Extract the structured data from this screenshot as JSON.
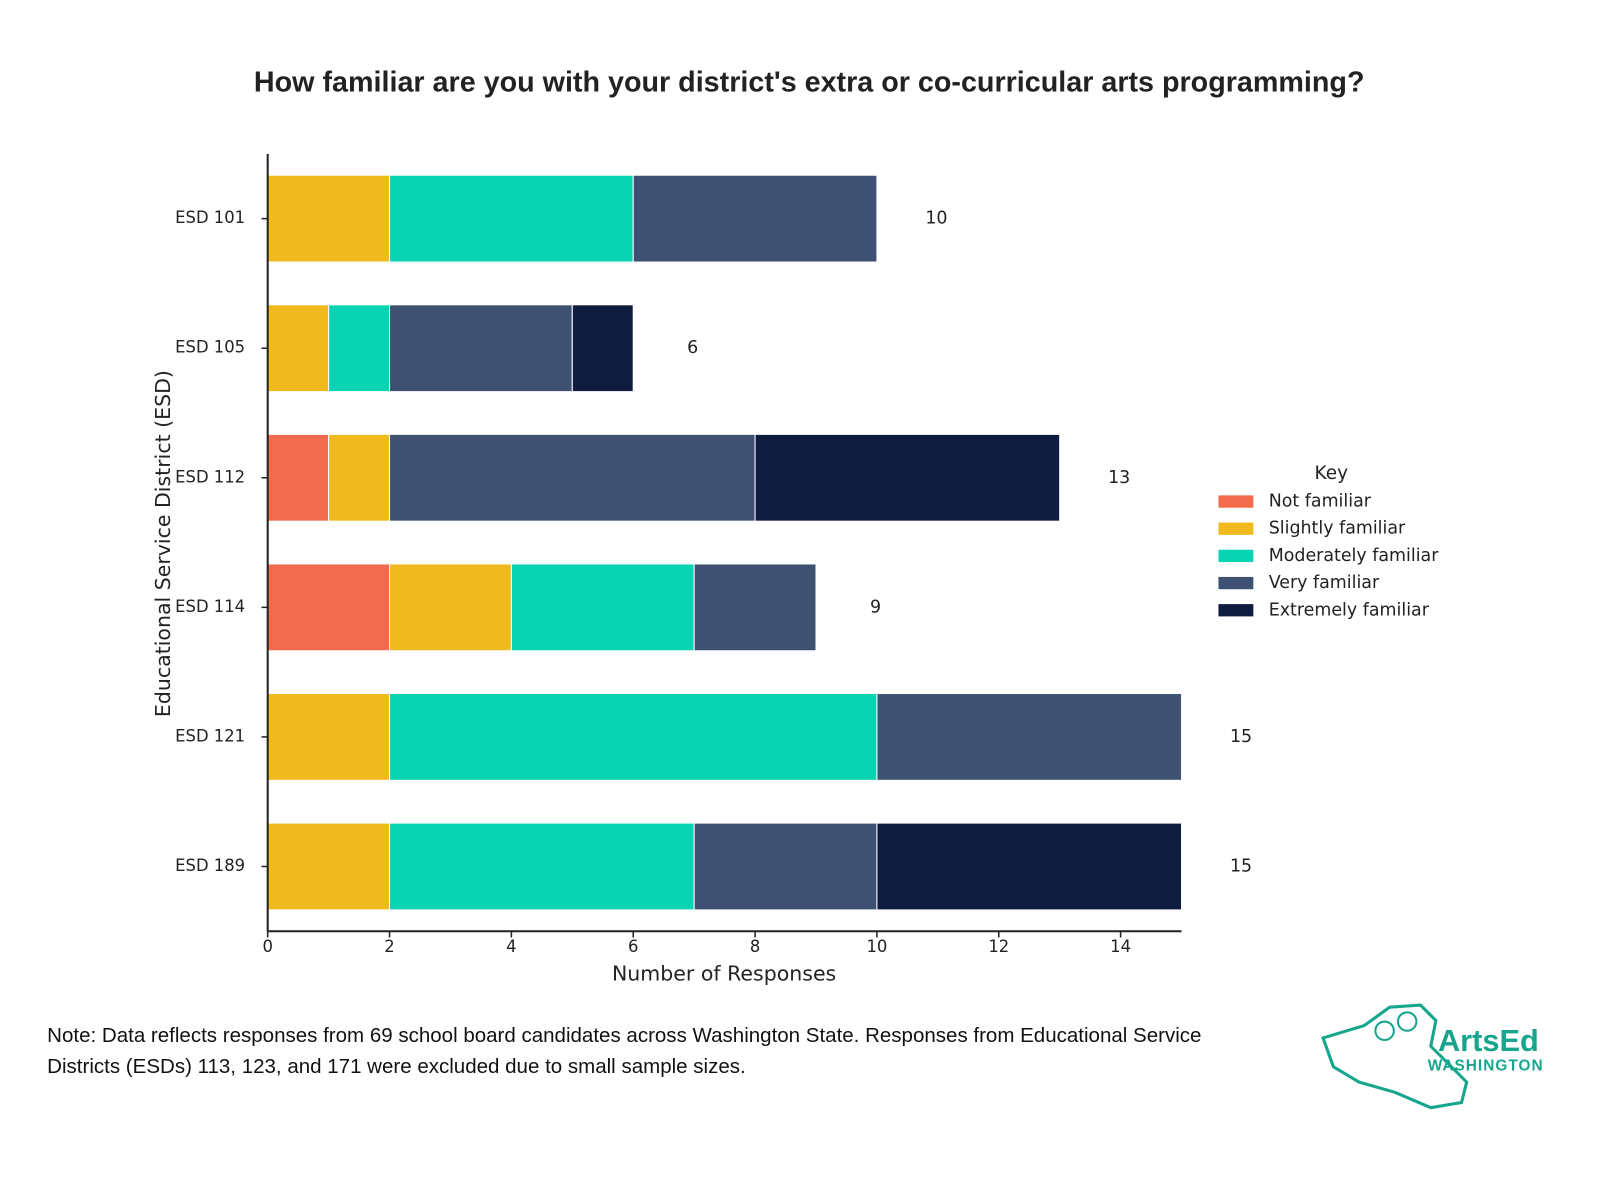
{
  "chart_data": {
    "type": "stacked-barh",
    "title": "How familiar are you with your district's extra or co-curricular arts programming?",
    "xlabel": "Number of Responses",
    "ylabel": "Educational Service District (ESD)",
    "categories": [
      "ESD 101",
      "ESD 105",
      "ESD 112",
      "ESD 114",
      "ESD 121",
      "ESD 189"
    ],
    "series": [
      {
        "name": "Not familiar",
        "color": "#f26b4c",
        "values": [
          0,
          0,
          1,
          2,
          0,
          0
        ]
      },
      {
        "name": "Slightly familiar",
        "color": "#f0b91e",
        "values": [
          2,
          1,
          1,
          2,
          2,
          2
        ]
      },
      {
        "name": "Moderately familiar",
        "color": "#08d3b3",
        "values": [
          4,
          1,
          0,
          3,
          8,
          5
        ]
      },
      {
        "name": "Very familiar",
        "color": "#3f5173",
        "values": [
          4,
          3,
          6,
          2,
          5,
          3
        ]
      },
      {
        "name": "Extremely familiar",
        "color": "#0f1c3f",
        "values": [
          0,
          1,
          5,
          0,
          0,
          5
        ]
      }
    ],
    "totals": [
      10,
      6,
      13,
      9,
      15,
      15
    ],
    "xlim": [
      0,
      15
    ],
    "xticks": [
      0,
      2,
      4,
      6,
      8,
      10,
      12,
      14
    ],
    "legend_title": "Key",
    "legend_position": "right",
    "note": "Note: Data reflects responses from 69 school board candidates across Washington State. Responses from Educational Service Districts (ESDs) 113, 123, and 171 were excluded due to small sample sizes."
  },
  "logo": {
    "line1": "ArtsEd",
    "line2": "WASHINGTON"
  }
}
